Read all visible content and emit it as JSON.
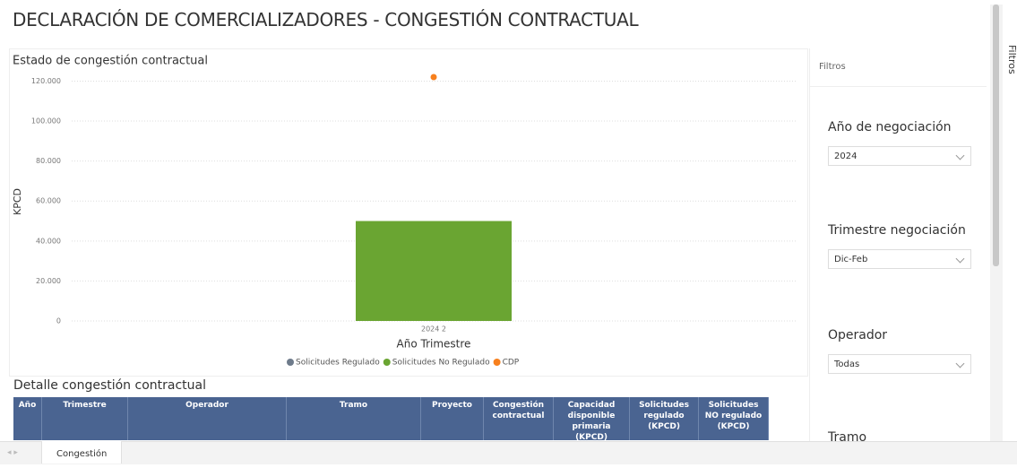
{
  "header": {
    "title": "DECLARACIÓN DE COMERCIALIZADORES - CONGESTIÓN CONTRACTUAL"
  },
  "chart_data": {
    "type": "bar",
    "title": "Estado de congestión contractual",
    "x_label": "Año Trimestre",
    "y_label": "KPCD",
    "categories": [
      "2024 2"
    ],
    "series": [
      {
        "name": "Solicitudes Regulado",
        "color": "#6e7b8b",
        "mark": "bar",
        "values": [
          0
        ]
      },
      {
        "name": "Solicitudes No Regulado",
        "color": "#6aa532",
        "mark": "bar",
        "values": [
          50000
        ]
      },
      {
        "name": "CDP",
        "color": "#f7801e",
        "mark": "point",
        "values": [
          122000
        ]
      }
    ],
    "ylim": [
      0,
      122000
    ],
    "yticks": [
      0,
      {
        "value": 20000,
        "label": "20.000"
      },
      {
        "value": 40000,
        "label": "40.000"
      },
      {
        "value": 60000,
        "label": "60.000"
      },
      {
        "value": 80000,
        "label": "80.000"
      },
      {
        "value": 100000,
        "label": "100.000"
      },
      {
        "value": 120000,
        "label": "120.000"
      }
    ],
    "grid": true,
    "legend": "bottom"
  },
  "table": {
    "title": "Detalle congestión contractual",
    "columns": [
      "Año",
      "Trimestre",
      "Operador",
      "Tramo",
      "Proyecto",
      "Congestión contractual",
      "Capacidad disponible primaria (KPCD)",
      "Solicitudes regulado (KPCD)",
      "Solicitudes NO regulado (KPCD)"
    ]
  },
  "filters": {
    "title": "Filtros",
    "tab": "Filtros",
    "items": [
      {
        "label": "Año de negociación",
        "value": "2024"
      },
      {
        "label": "Trimestre negociación",
        "value": "Dic-Feb"
      },
      {
        "label": "Operador",
        "value": "Todas"
      },
      {
        "label": "Tramo"
      }
    ]
  },
  "tabs": [
    "Congestión"
  ]
}
